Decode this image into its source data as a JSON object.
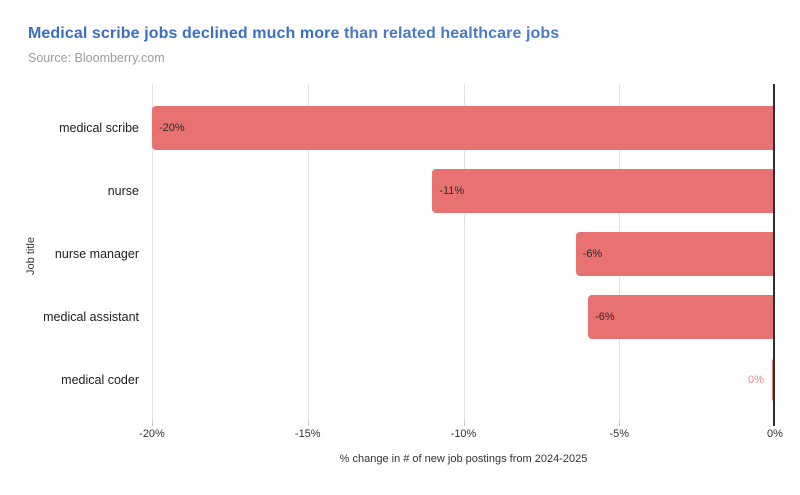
{
  "header": {
    "title_bold": "Medical scribe jobs declined much more ",
    "title_regular": "than related healthcare jobs",
    "source": "Source: Bloomberry.com"
  },
  "colors": {
    "title_blue": "#3a6fc4",
    "source_gray": "#9c9c9c",
    "bar_red": "#e87171",
    "bar_label_dark": "#2b2b2b",
    "axis_text": "#333333",
    "gridline": "#e3e3e3",
    "zero_line": "#2e2e2e"
  },
  "chart_data": {
    "type": "bar",
    "orientation": "horizontal",
    "title": "Medical scribe jobs declined much more than related healthcare jobs",
    "source": "Bloomberry.com",
    "categories": [
      "medical scribe",
      "nurse",
      "nurse manager",
      "medical assistant",
      "medical coder"
    ],
    "values": [
      -20,
      -11,
      -6.4,
      -6,
      -0.1
    ],
    "bar_labels": [
      "-20%",
      "-11%",
      "-6%",
      "-6%",
      "0%"
    ],
    "xlabel": "% change in # of new job postings from 2024-2025",
    "ylabel": "Job title",
    "xlim": [
      -20,
      0
    ],
    "xticks": [
      -20,
      -15,
      -10,
      -5,
      0
    ],
    "xtick_labels": [
      "-20%",
      "-15%",
      "-10%",
      "-5%",
      "0%"
    ],
    "grid": true,
    "legend": false,
    "bars_anchored_at": 0
  }
}
